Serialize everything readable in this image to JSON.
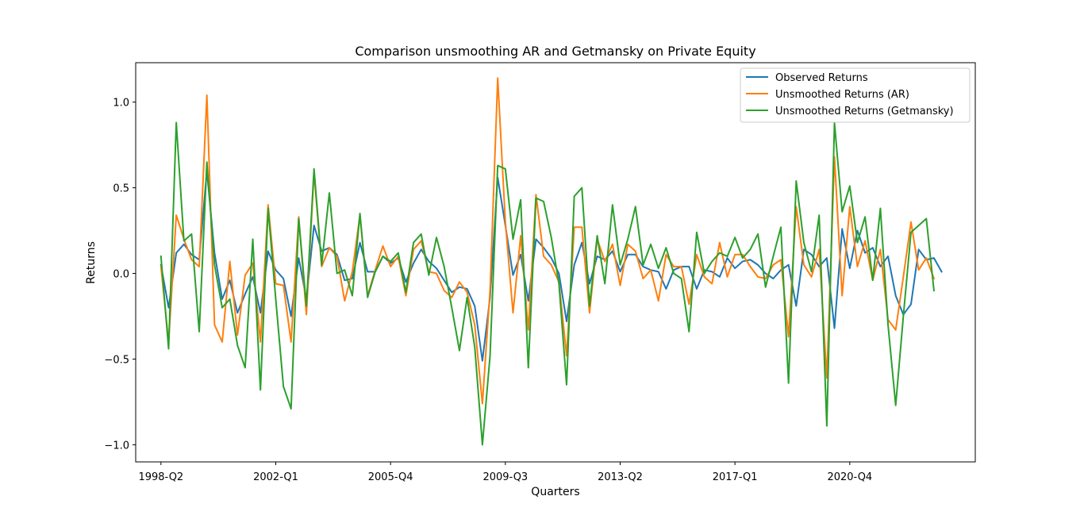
{
  "chart_data": {
    "type": "line",
    "title": "Comparison unsmoothing AR and Getmansky on Private Equity",
    "xlabel": "Quarters",
    "ylabel": "Returns",
    "ylim": [
      -1.1,
      1.23
    ],
    "yticks": [
      -1.0,
      -0.5,
      0.0,
      0.5,
      1.0
    ],
    "ytick_labels": [
      "−1.0",
      "−0.5",
      "0.0",
      "0.5",
      "1.0"
    ],
    "xticks": [
      {
        "label": "1998-Q2",
        "index": 0
      },
      {
        "label": "2002-Q1",
        "index": 15
      },
      {
        "label": "2005-Q4",
        "index": 30
      },
      {
        "label": "2009-Q3",
        "index": 45
      },
      {
        "label": "2013-Q2",
        "index": 60
      },
      {
        "label": "2017-Q1",
        "index": 75
      },
      {
        "label": "2020-Q4",
        "index": 90
      }
    ],
    "x_range": [
      -3.3,
      106.4
    ],
    "legend_position": "upper right",
    "grid": false,
    "series": [
      {
        "name": "Observed Returns",
        "color": "#1f77b4",
        "values": [
          0.05,
          -0.2,
          0.12,
          0.17,
          0.11,
          0.08,
          0.6,
          0.12,
          -0.15,
          -0.04,
          -0.23,
          -0.12,
          -0.02,
          -0.23,
          0.13,
          0.02,
          -0.03,
          -0.25,
          0.09,
          -0.15,
          0.28,
          0.13,
          0.15,
          0.11,
          -0.04,
          -0.03,
          0.18,
          0.01,
          0.01,
          0.1,
          0.06,
          0.09,
          -0.05,
          0.06,
          0.14,
          0.07,
          0.03,
          -0.04,
          -0.11,
          -0.08,
          -0.09,
          -0.19,
          -0.51,
          -0.14,
          0.56,
          0.28,
          -0.01,
          0.11,
          -0.16,
          0.2,
          0.15,
          0.09,
          0.0,
          -0.28,
          0.05,
          0.18,
          -0.06,
          0.1,
          0.08,
          0.13,
          0.01,
          0.11,
          0.11,
          0.04,
          0.02,
          0.01,
          -0.09,
          0.02,
          0.04,
          0.04,
          -0.09,
          0.02,
          0.01,
          -0.02,
          0.09,
          0.03,
          0.07,
          0.08,
          0.05,
          0.0,
          -0.03,
          0.02,
          0.05,
          -0.19,
          0.14,
          0.11,
          0.04,
          0.09,
          -0.32,
          0.26,
          0.03,
          0.25,
          0.12,
          0.15,
          0.04,
          0.1,
          -0.13,
          -0.24,
          -0.18,
          0.14,
          0.08,
          0.09,
          0.01
        ]
      },
      {
        "name": "Unsmoothed Returns (AR)",
        "color": "#ff7f0e",
        "values": [
          0.04,
          -0.4,
          0.34,
          0.2,
          0.08,
          0.04,
          1.04,
          -0.3,
          -0.4,
          0.07,
          -0.36,
          -0.01,
          0.06,
          -0.4,
          0.4,
          -0.06,
          -0.07,
          -0.4,
          0.33,
          -0.24,
          0.59,
          0.04,
          0.15,
          0.1,
          -0.16,
          0.01,
          0.34,
          -0.13,
          0.02,
          0.16,
          0.04,
          0.1,
          -0.13,
          0.14,
          0.19,
          0.01,
          0.0,
          -0.1,
          -0.14,
          -0.05,
          -0.11,
          -0.3,
          -0.76,
          -0.1,
          1.14,
          0.3,
          -0.23,
          0.22,
          -0.33,
          0.46,
          0.1,
          0.05,
          -0.05,
          -0.48,
          0.27,
          0.27,
          -0.23,
          0.2,
          0.07,
          0.17,
          -0.07,
          0.17,
          0.13,
          -0.03,
          0.02,
          -0.16,
          0.11,
          0.04,
          0.04,
          -0.18,
          0.11,
          -0.02,
          -0.06,
          0.18,
          -0.02,
          0.11,
          0.11,
          0.04,
          -0.02,
          -0.03,
          0.05,
          0.08,
          -0.37,
          0.39,
          0.05,
          -0.02,
          0.14,
          -0.61,
          0.68,
          -0.13,
          0.39,
          0.04,
          0.19,
          -0.04,
          0.14,
          -0.27,
          -0.33,
          -0.02,
          0.3,
          0.02,
          0.09,
          -0.03
        ]
      },
      {
        "name": "Unsmoothed Returns (Getmansky)",
        "color": "#2ca02c",
        "values": [
          0.1,
          -0.44,
          0.88,
          0.19,
          0.23,
          -0.34,
          0.65,
          0.05,
          -0.2,
          -0.15,
          -0.42,
          -0.55,
          0.2,
          -0.68,
          0.38,
          -0.15,
          -0.66,
          -0.79,
          0.32,
          -0.19,
          0.61,
          0.05,
          0.47,
          0.0,
          0.02,
          -0.13,
          0.35,
          -0.14,
          0.01,
          0.1,
          0.07,
          0.12,
          -0.11,
          0.18,
          0.23,
          -0.01,
          0.21,
          0.04,
          -0.2,
          -0.45,
          -0.14,
          -0.43,
          -1.0,
          -0.48,
          0.63,
          0.61,
          0.2,
          0.43,
          -0.55,
          0.44,
          0.42,
          0.21,
          -0.06,
          -0.65,
          0.45,
          0.5,
          -0.19,
          0.22,
          -0.06,
          0.4,
          0.05,
          0.2,
          0.39,
          0.05,
          0.17,
          0.03,
          0.15,
          0.0,
          -0.03,
          -0.34,
          0.24,
          0.0,
          0.07,
          0.12,
          0.1,
          0.21,
          0.09,
          0.14,
          0.23,
          -0.08,
          0.1,
          0.27,
          -0.64,
          0.54,
          0.18,
          0.01,
          0.34,
          -0.89,
          0.88,
          0.36,
          0.51,
          0.18,
          0.33,
          -0.04,
          0.38,
          -0.3,
          -0.77,
          -0.25,
          0.24,
          0.28,
          0.32,
          -0.1
        ]
      }
    ]
  }
}
